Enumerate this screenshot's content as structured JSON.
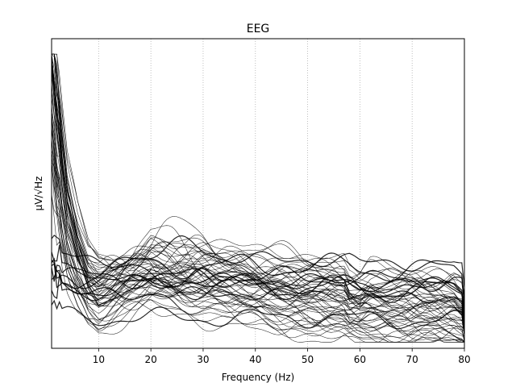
{
  "chart_data": {
    "type": "line",
    "title": "EEG",
    "xlabel": "Frequency (Hz)",
    "ylabel": "µV/√Hz",
    "xlim": [
      1,
      80
    ],
    "x_ticks": [
      10,
      20,
      30,
      40,
      50,
      60,
      70,
      80
    ],
    "x_tick_labels": [
      "10",
      "20",
      "30",
      "40",
      "50",
      "60",
      "70",
      "80"
    ],
    "y_ticks_labeled": false,
    "grid": {
      "x": "dotted",
      "y": false
    },
    "line_color": "#000000",
    "series_count": 60,
    "note_values": "y values are relative amplitudes (0 = bottom of axis, 1 = top of axis); y-axis has no tick labels",
    "sample_frequencies": [
      1,
      2,
      4,
      6,
      8,
      10,
      15,
      20,
      25,
      30,
      40,
      50,
      57,
      58,
      60,
      62,
      70,
      78,
      79.5,
      80
    ],
    "representative_series": [
      {
        "values": [
          0.9,
          0.72,
          0.45,
          0.32,
          0.23,
          0.2,
          0.2,
          0.22,
          0.23,
          0.24,
          0.22,
          0.2,
          0.19,
          0.16,
          0.15,
          0.17,
          0.16,
          0.15,
          0.13,
          0.07
        ]
      },
      {
        "values": [
          0.7,
          0.55,
          0.34,
          0.24,
          0.17,
          0.14,
          0.19,
          0.24,
          0.21,
          0.19,
          0.15,
          0.12,
          0.1,
          0.09,
          0.09,
          0.09,
          0.08,
          0.07,
          0.06,
          0.05
        ]
      },
      {
        "values": [
          0.23,
          0.22,
          0.22,
          0.21,
          0.21,
          0.21,
          0.21,
          0.21,
          0.21,
          0.21,
          0.21,
          0.21,
          0.21,
          0.21,
          0.2,
          0.2,
          0.2,
          0.2,
          0.19,
          0.12
        ]
      }
    ]
  }
}
